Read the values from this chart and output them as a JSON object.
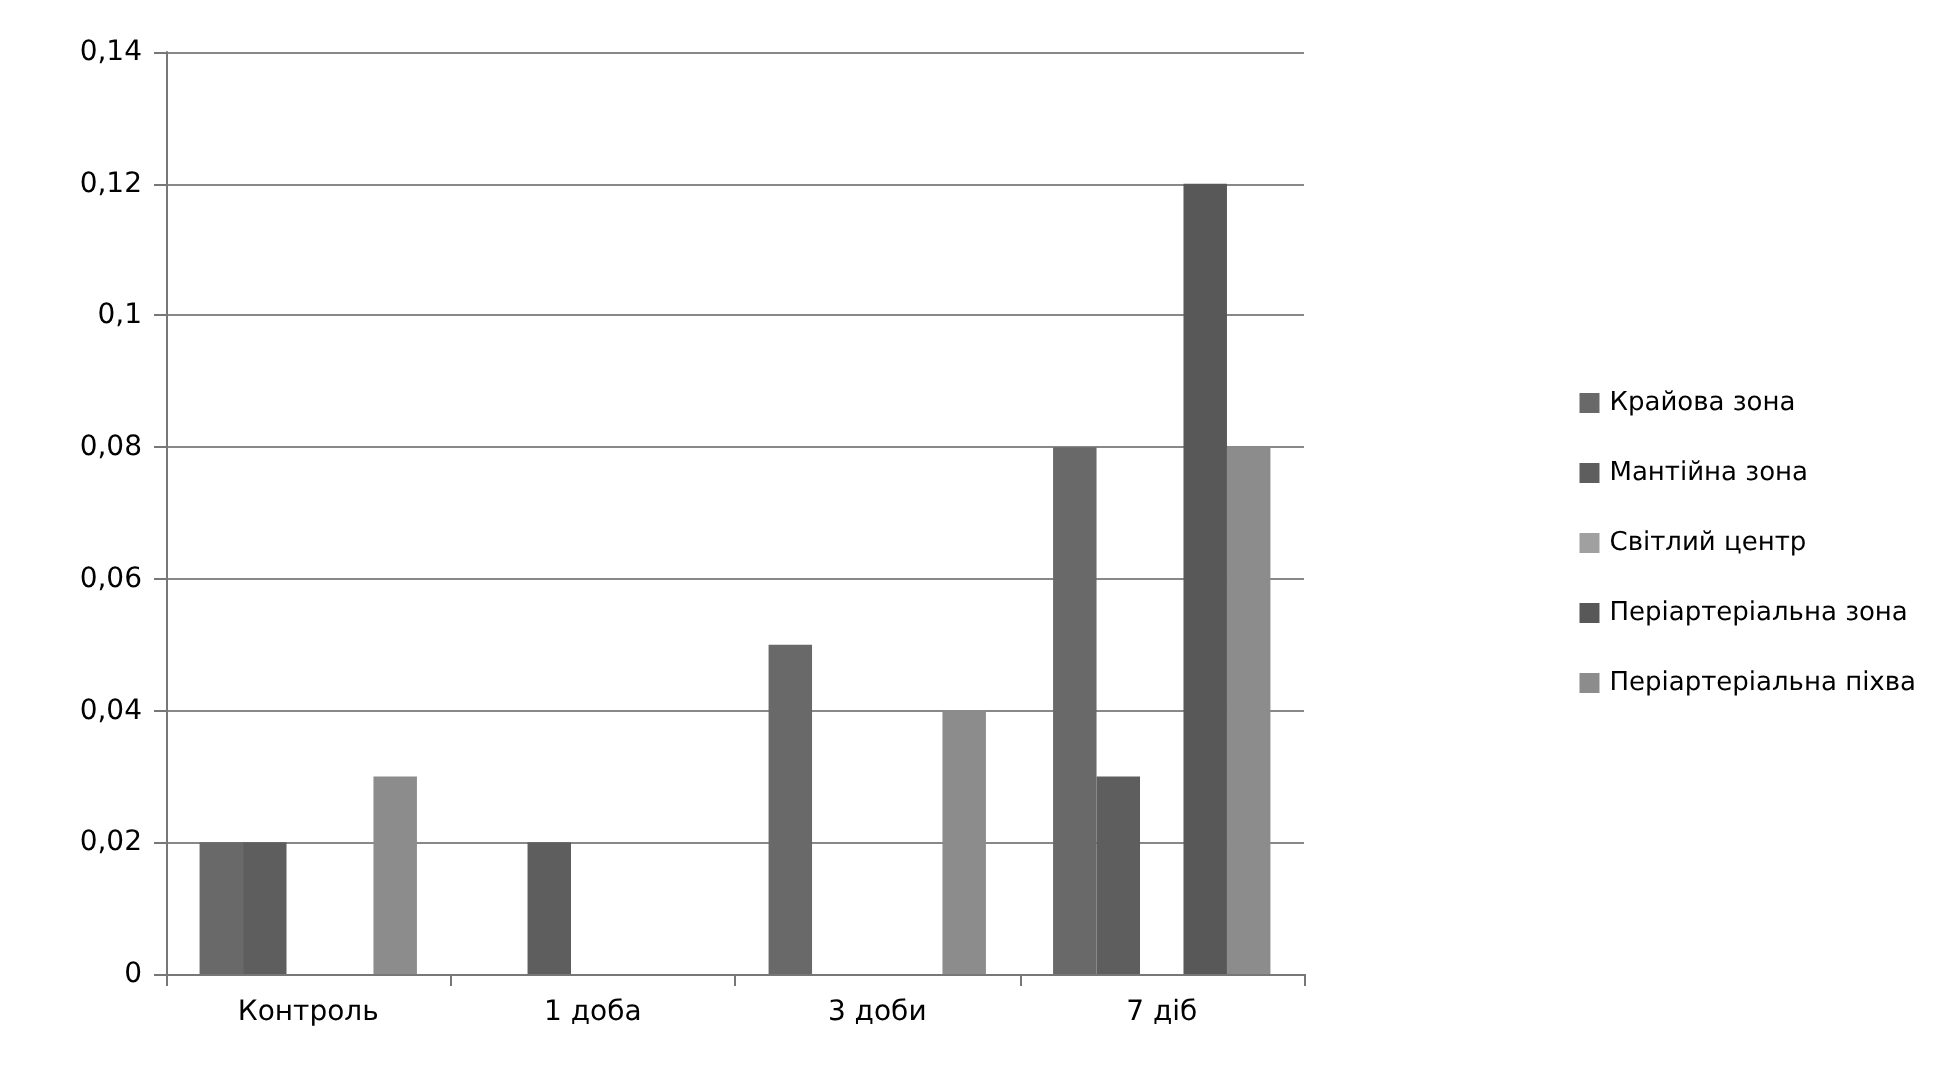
{
  "chart_data": {
    "type": "bar",
    "categories": [
      "Контроль",
      "1 доба",
      "3 доби",
      "7 діб"
    ],
    "series": [
      {
        "name": "Крайова зона",
        "color": "#696969",
        "values": [
          0.02,
          null,
          0.05,
          0.08
        ]
      },
      {
        "name": "Мантійна зона",
        "color": "#5e5e5e",
        "values": [
          0.02,
          0.02,
          null,
          0.03
        ]
      },
      {
        "name": "Світлий центр",
        "color": "#a0a0a0",
        "values": [
          null,
          null,
          null,
          null
        ]
      },
      {
        "name": "Періартеріальна зона",
        "color": "#585858",
        "values": [
          null,
          null,
          null,
          0.12
        ]
      },
      {
        "name": "Періартеріальна піхва",
        "color": "#8c8c8c",
        "values": [
          0.03,
          null,
          0.04,
          0.08
        ]
      }
    ],
    "ylim": [
      0,
      0.14
    ],
    "yticks": [
      0,
      {
        "value": 0.02,
        "label": "0,02"
      },
      {
        "value": 0.04,
        "label": "0,04"
      },
      {
        "value": 0.06,
        "label": "0,06"
      },
      {
        "value": 0.08,
        "label": "0,08"
      },
      {
        "value": 0.1,
        "label": "0,1"
      },
      {
        "value": 0.12,
        "label": "0,12"
      },
      {
        "value": 0.14,
        "label": "0,14"
      }
    ],
    "grid": "y",
    "legend": "right"
  }
}
